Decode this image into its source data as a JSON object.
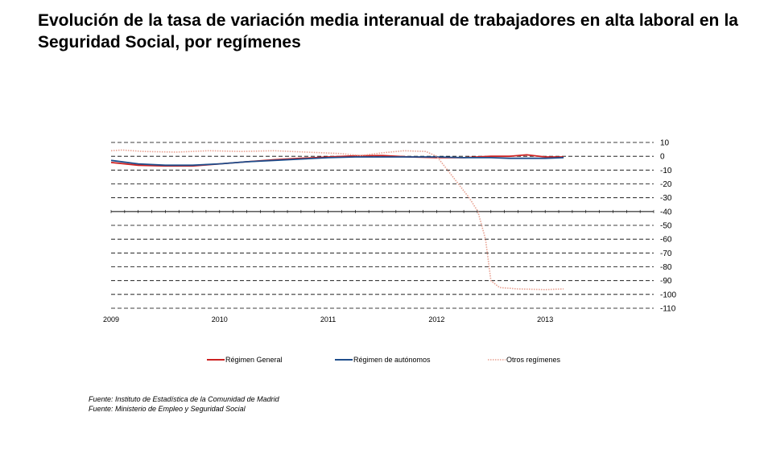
{
  "title": "Evolución de la tasa de variación media interanual de trabajadores en alta laboral en la Seguridad Social, por  regímenes",
  "sources": [
    "Fuente: Instituto de Estadística de la Comunidad de Madrid",
    "Fuente: Ministerio de Empleo y Seguridad Social"
  ],
  "chart_data": {
    "type": "line",
    "title": "Evolución de la tasa de variación media interanual de trabajadores en alta laboral en la Seguridad Social, por  regímenes",
    "xlabel": "",
    "ylabel": "",
    "x_ticks": [
      "2009",
      "2010",
      "2011",
      "2012",
      "2013"
    ],
    "xlim": [
      2009,
      2014
    ],
    "ylim": [
      -110,
      10
    ],
    "y_ticks": [
      10,
      0,
      -10,
      -20,
      -30,
      -40,
      -50,
      -60,
      -70,
      -80,
      -90,
      -100,
      -110
    ],
    "grid": true,
    "legend_position": "bottom",
    "series": [
      {
        "name": "Régimen General",
        "color": "#cc2222",
        "style": "solid",
        "x": [
          2009.0,
          2009.25,
          2009.5,
          2009.75,
          2010.0,
          2010.25,
          2010.5,
          2010.75,
          2011.0,
          2011.25,
          2011.5,
          2011.75,
          2012.0,
          2012.25,
          2012.5,
          2012.67,
          2012.83,
          2013.0,
          2013.17
        ],
        "y": [
          -4.5,
          -6.5,
          -7.0,
          -7.0,
          -5.5,
          -4.0,
          -2.5,
          -1.5,
          -0.5,
          0.3,
          0.5,
          -0.5,
          -1.0,
          -1.0,
          0.0,
          0.0,
          1.0,
          -0.5,
          -0.5
        ]
      },
      {
        "name": "Régimen de autónomos",
        "color": "#1f4e8c",
        "style": "solid",
        "x": [
          2009.0,
          2009.25,
          2009.5,
          2009.75,
          2010.0,
          2010.25,
          2010.5,
          2010.75,
          2011.0,
          2011.25,
          2011.5,
          2011.75,
          2012.0,
          2012.25,
          2012.5,
          2012.67,
          2012.83,
          2013.0,
          2013.17
        ],
        "y": [
          -3.0,
          -5.5,
          -6.5,
          -6.5,
          -5.5,
          -4.0,
          -3.0,
          -2.0,
          -1.0,
          -0.5,
          -0.5,
          -0.5,
          -0.5,
          -1.0,
          -1.0,
          -1.5,
          -1.5,
          -1.5,
          -1.0
        ]
      },
      {
        "name": "Otros regímenes",
        "color": "#e8a090",
        "style": "dotted",
        "x": [
          2009.0,
          2009.1,
          2009.3,
          2009.6,
          2009.9,
          2010.2,
          2010.5,
          2010.8,
          2011.1,
          2011.3,
          2011.5,
          2011.7,
          2011.9,
          2012.0,
          2012.1,
          2012.2,
          2012.3,
          2012.38,
          2012.45,
          2012.5,
          2012.58,
          2012.75,
          2013.0,
          2013.17
        ],
        "y": [
          4.0,
          4.5,
          3.5,
          3.0,
          4.0,
          3.5,
          4.0,
          3.0,
          2.0,
          0.5,
          2.5,
          4.0,
          3.5,
          0.0,
          -10.0,
          -20.0,
          -30.0,
          -40.0,
          -60.0,
          -90.0,
          -95.0,
          -96.0,
          -96.5,
          -96.0
        ]
      }
    ]
  }
}
